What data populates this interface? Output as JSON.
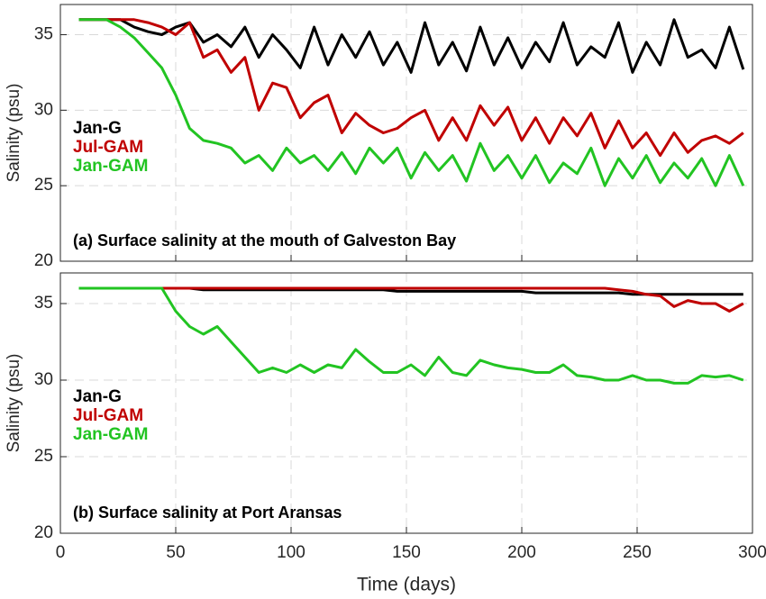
{
  "chart_data": [
    {
      "type": "line",
      "ylabel": "Salinity (psu)",
      "annotation": "(a) Surface salinity at the mouth of Galveston Bay",
      "legend": "upper left",
      "grid": true,
      "xlim": [
        0,
        300
      ],
      "xticks": [
        0,
        50,
        100,
        150,
        200,
        250,
        300
      ],
      "ylim": [
        20,
        37
      ],
      "yticks": [
        20,
        25,
        30,
        35
      ],
      "x": [
        8,
        14,
        20,
        26,
        32,
        38,
        44,
        50,
        56,
        62,
        68,
        74,
        80,
        86,
        92,
        98,
        104,
        110,
        116,
        122,
        128,
        134,
        140,
        146,
        152,
        158,
        164,
        170,
        176,
        182,
        188,
        194,
        200,
        206,
        212,
        218,
        224,
        230,
        236,
        242,
        248,
        254,
        260,
        266,
        272,
        278,
        284,
        290,
        296
      ],
      "series": [
        {
          "name": "Jan-G",
          "color": "#000000",
          "values": [
            36,
            36,
            36,
            36,
            35.5,
            35.2,
            35,
            35.5,
            35.8,
            34.5,
            35,
            34.2,
            35.5,
            33.5,
            35,
            34,
            32.8,
            35.5,
            33,
            35,
            33.5,
            35.2,
            33,
            34.5,
            32.5,
            35.8,
            33,
            34.5,
            32.6,
            35.5,
            33,
            34.8,
            32.8,
            34.5,
            33.2,
            35.8,
            33,
            34.2,
            33.5,
            35.8,
            32.5,
            34.5,
            33,
            36,
            33.5,
            34,
            32.8,
            35.5,
            32.7
          ]
        },
        {
          "name": "Jul-GAM",
          "color": "#c00000",
          "values": [
            36,
            36,
            36,
            36,
            36,
            35.8,
            35.5,
            35,
            35.8,
            33.5,
            34,
            32.5,
            33.5,
            30,
            31.8,
            31.5,
            29.5,
            30.5,
            31,
            28.5,
            29.8,
            29,
            28.5,
            28.8,
            29.5,
            30,
            28,
            29.5,
            28,
            30.3,
            29,
            30.2,
            28,
            29.5,
            27.8,
            29.5,
            28.3,
            29.8,
            27.5,
            29.3,
            27.5,
            28.5,
            27,
            28.5,
            27.2,
            28,
            28.3,
            27.8,
            28.5
          ]
        },
        {
          "name": "Jan-GAM",
          "color": "#22c422",
          "values": [
            36,
            36,
            36,
            35.5,
            34.8,
            33.8,
            32.8,
            31,
            28.8,
            28,
            27.8,
            27.5,
            26.5,
            27,
            26,
            27.5,
            26.5,
            27,
            26,
            27.2,
            25.8,
            27.5,
            26.5,
            27.5,
            25.5,
            27.2,
            26,
            27,
            25.3,
            27.8,
            26,
            27,
            25.5,
            27,
            25.2,
            26.5,
            25.8,
            27.5,
            25,
            26.8,
            25.5,
            27,
            25.2,
            26.5,
            25.5,
            26.8,
            25,
            27,
            25
          ]
        }
      ]
    },
    {
      "type": "line",
      "ylabel": "Salinity (psu)",
      "xlabel": "Time (days)",
      "annotation": "(b) Surface salinity at Port Aransas",
      "legend": "upper left",
      "grid": true,
      "xlim": [
        0,
        300
      ],
      "xticks": [
        0,
        50,
        100,
        150,
        200,
        250,
        300
      ],
      "ylim": [
        20,
        37
      ],
      "yticks": [
        20,
        25,
        30,
        35
      ],
      "x": [
        8,
        14,
        20,
        26,
        32,
        38,
        44,
        50,
        56,
        62,
        68,
        74,
        80,
        86,
        92,
        98,
        104,
        110,
        116,
        122,
        128,
        134,
        140,
        146,
        152,
        158,
        164,
        170,
        176,
        182,
        188,
        194,
        200,
        206,
        212,
        218,
        224,
        230,
        236,
        242,
        248,
        254,
        260,
        266,
        272,
        278,
        284,
        290,
        296
      ],
      "series": [
        {
          "name": "Jan-G",
          "color": "#000000",
          "values": [
            36,
            36,
            36,
            36,
            36,
            36,
            36,
            36,
            36,
            35.9,
            35.9,
            35.9,
            35.9,
            35.9,
            35.9,
            35.9,
            35.9,
            35.9,
            35.9,
            35.9,
            35.9,
            35.9,
            35.9,
            35.8,
            35.8,
            35.8,
            35.8,
            35.8,
            35.8,
            35.8,
            35.8,
            35.8,
            35.8,
            35.7,
            35.7,
            35.7,
            35.7,
            35.7,
            35.7,
            35.7,
            35.6,
            35.6,
            35.6,
            35.6,
            35.6,
            35.6,
            35.6,
            35.6,
            35.6
          ]
        },
        {
          "name": "Jul-GAM",
          "color": "#c00000",
          "values": [
            36,
            36,
            36,
            36,
            36,
            36,
            36,
            36,
            36,
            36,
            36,
            36,
            36,
            36,
            36,
            36,
            36,
            36,
            36,
            36,
            36,
            36,
            36,
            36,
            36,
            36,
            36,
            36,
            36,
            36,
            36,
            36,
            36,
            36,
            36,
            36,
            36,
            36,
            36,
            35.9,
            35.8,
            35.6,
            35.5,
            34.8,
            35.2,
            35,
            35,
            34.5,
            35
          ]
        },
        {
          "name": "Jan-GAM",
          "color": "#22c422",
          "values": [
            36,
            36,
            36,
            36,
            36,
            36,
            36,
            34.5,
            33.5,
            33,
            33.5,
            32.5,
            31.5,
            30.5,
            30.8,
            30.5,
            31,
            30.5,
            31,
            30.8,
            32,
            31.2,
            30.5,
            30.5,
            31,
            30.3,
            31.5,
            30.5,
            30.3,
            31.3,
            31,
            30.8,
            30.7,
            30.5,
            30.5,
            31,
            30.3,
            30.2,
            30,
            30,
            30.3,
            30,
            30,
            29.8,
            29.8,
            30.3,
            30.2,
            30.3,
            30
          ]
        }
      ]
    }
  ]
}
